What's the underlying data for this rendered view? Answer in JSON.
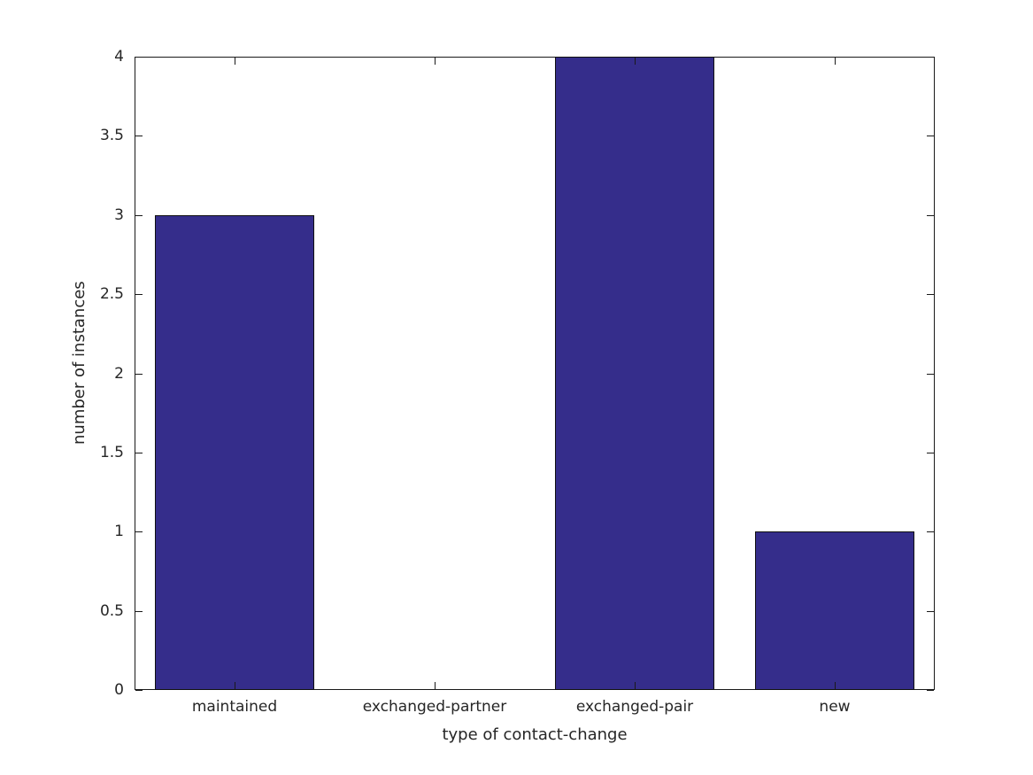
{
  "figure": {
    "background": "#ffffff",
    "axis_color": "#1a1a1a",
    "text_color": "#262626"
  },
  "chart_data": {
    "type": "bar",
    "categories": [
      "maintained",
      "exchanged-partner",
      "exchanged-pair",
      "new"
    ],
    "values": [
      3,
      0,
      4,
      1
    ],
    "title": "",
    "xlabel": "type of contact-change",
    "ylabel": "number of instances",
    "ylim": [
      0,
      4
    ],
    "yticks": [
      0,
      0.5,
      1,
      1.5,
      2,
      2.5,
      3,
      3.5,
      4
    ],
    "bar_color": "#352d8b",
    "bar_edge_color": "#101010",
    "bar_width_fraction": 0.8,
    "grid": false,
    "legend": null,
    "tick_direction": "in"
  }
}
